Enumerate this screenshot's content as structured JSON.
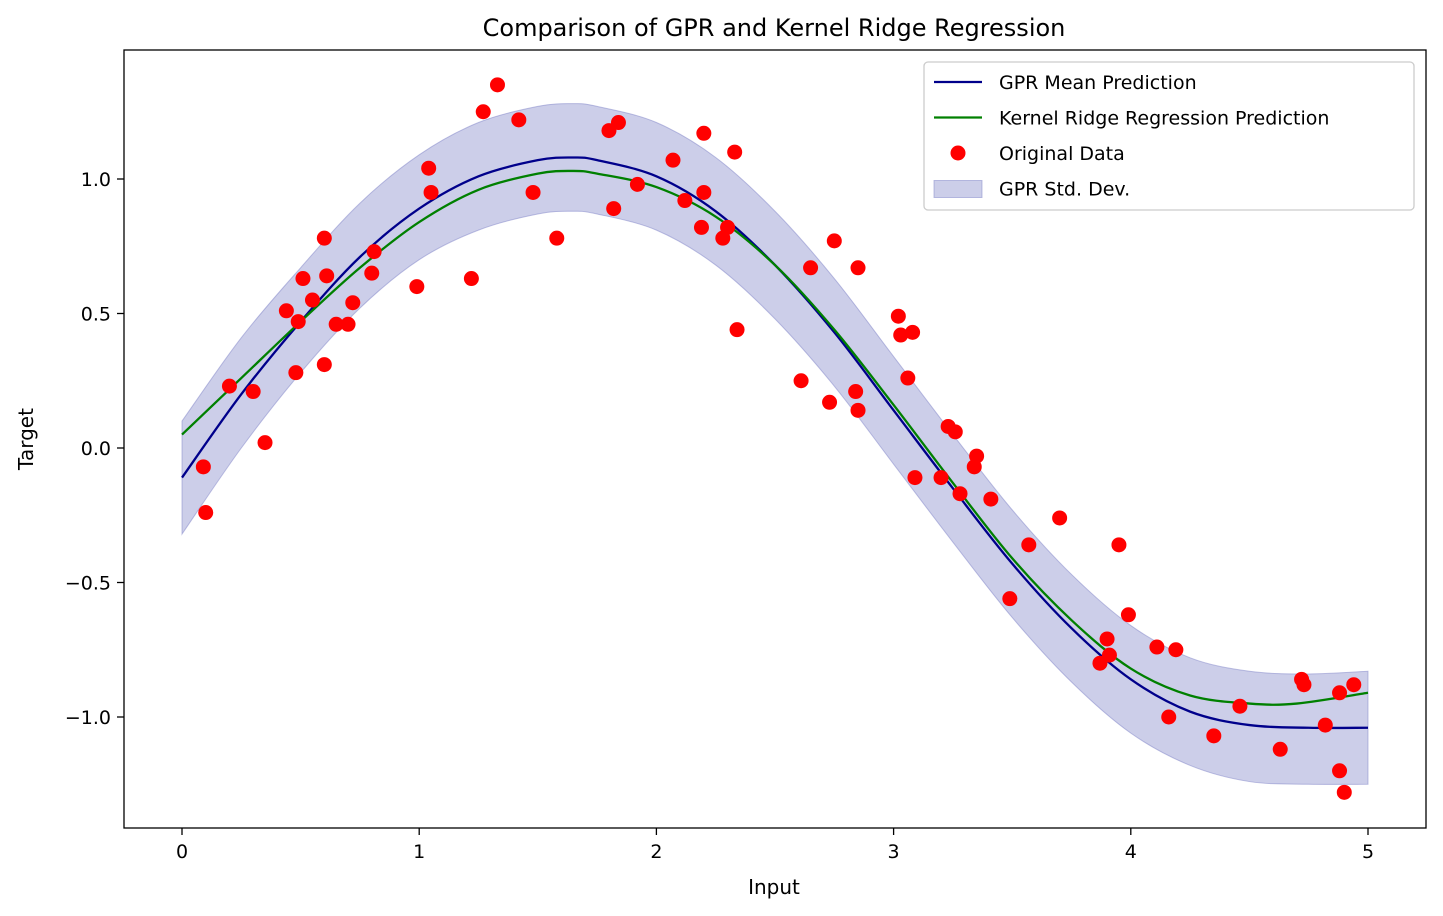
{
  "chart_data": {
    "type": "line",
    "title": "Comparison of GPR and Kernel Ridge Regression",
    "xlabel": "Input",
    "ylabel": "Target",
    "xlim": [
      -0.25,
      5.25
    ],
    "ylim": [
      -1.42,
      1.47
    ],
    "x_ticks": [
      0,
      1,
      2,
      3,
      4,
      5
    ],
    "x_tick_labels": [
      "0",
      "1",
      "2",
      "3",
      "4",
      "5"
    ],
    "y_ticks": [
      -1.0,
      -0.5,
      0.0,
      0.5,
      1.0
    ],
    "y_tick_labels": [
      "−1.0",
      "−0.5",
      "0.0",
      "0.5",
      "1.0"
    ],
    "grid": false,
    "legend_position": "top-right",
    "series": [
      {
        "name": "GPR Mean Prediction",
        "type": "line",
        "color": "#00008b",
        "x": [
          0,
          0.25,
          0.5,
          0.75,
          1.0,
          1.25,
          1.5,
          1.65,
          1.75,
          2.0,
          2.25,
          2.5,
          2.75,
          3.0,
          3.25,
          3.5,
          3.75,
          4.0,
          4.25,
          4.5,
          4.75,
          5.0
        ],
        "y": [
          -0.11,
          0.2,
          0.47,
          0.71,
          0.89,
          1.01,
          1.07,
          1.08,
          1.07,
          1.01,
          0.88,
          0.68,
          0.43,
          0.14,
          -0.15,
          -0.43,
          -0.67,
          -0.86,
          -0.98,
          -1.03,
          -1.04,
          -1.04
        ]
      },
      {
        "name": "Kernel Ridge Regression Prediction",
        "type": "line",
        "color": "#008000",
        "x": [
          0,
          0.25,
          0.5,
          0.75,
          1.0,
          1.25,
          1.5,
          1.65,
          1.75,
          2.0,
          2.25,
          2.5,
          2.75,
          3.0,
          3.25,
          3.5,
          3.75,
          4.0,
          4.25,
          4.5,
          4.7,
          5.0
        ],
        "y": [
          0.05,
          0.26,
          0.47,
          0.67,
          0.84,
          0.96,
          1.02,
          1.03,
          1.02,
          0.97,
          0.86,
          0.68,
          0.44,
          0.16,
          -0.13,
          -0.41,
          -0.64,
          -0.82,
          -0.92,
          -0.95,
          -0.95,
          -0.91
        ]
      },
      {
        "name": "GPR Std. Dev.",
        "type": "band",
        "color": "#8084c8",
        "x": [
          0,
          0.25,
          0.5,
          0.75,
          1.0,
          1.25,
          1.5,
          1.65,
          1.75,
          2.0,
          2.25,
          2.5,
          2.75,
          3.0,
          3.25,
          3.5,
          3.75,
          4.0,
          4.25,
          4.5,
          4.75,
          5.0
        ],
        "lower": [
          -0.32,
          0.0,
          0.28,
          0.52,
          0.7,
          0.81,
          0.87,
          0.88,
          0.87,
          0.81,
          0.68,
          0.48,
          0.23,
          -0.06,
          -0.35,
          -0.63,
          -0.87,
          -1.06,
          -1.18,
          -1.24,
          -1.25,
          -1.25
        ],
        "upper": [
          0.1,
          0.41,
          0.67,
          0.91,
          1.09,
          1.21,
          1.27,
          1.28,
          1.27,
          1.21,
          1.08,
          0.88,
          0.63,
          0.34,
          0.05,
          -0.23,
          -0.47,
          -0.66,
          -0.78,
          -0.83,
          -0.84,
          -0.83
        ]
      },
      {
        "name": "Original Data",
        "type": "scatter",
        "color": "#ff0000",
        "x": [
          0.09,
          0.1,
          0.2,
          0.3,
          0.35,
          0.44,
          0.48,
          0.49,
          0.51,
          0.55,
          0.6,
          0.6,
          0.61,
          0.65,
          0.7,
          0.72,
          0.8,
          0.81,
          0.99,
          1.04,
          1.05,
          1.22,
          1.27,
          1.33,
          1.42,
          1.48,
          1.58,
          1.8,
          1.82,
          1.84,
          1.92,
          2.07,
          2.12,
          2.19,
          2.2,
          2.2,
          2.28,
          2.3,
          2.33,
          2.34,
          2.61,
          2.65,
          2.73,
          2.75,
          2.84,
          2.85,
          2.85,
          3.02,
          3.03,
          3.06,
          3.08,
          3.09,
          3.2,
          3.23,
          3.26,
          3.28,
          3.34,
          3.35,
          3.41,
          3.49,
          3.57,
          3.7,
          3.87,
          3.9,
          3.91,
          3.95,
          3.99,
          4.11,
          4.16,
          4.19,
          4.35,
          4.46,
          4.63,
          4.72,
          4.73,
          4.82,
          4.88,
          4.88,
          4.9,
          4.94
        ],
        "y": [
          -0.07,
          -0.24,
          0.23,
          0.21,
          0.02,
          0.51,
          0.28,
          0.47,
          0.63,
          0.55,
          0.31,
          0.78,
          0.64,
          0.46,
          0.46,
          0.54,
          0.65,
          0.73,
          0.6,
          1.04,
          0.95,
          0.63,
          1.25,
          1.35,
          1.22,
          0.95,
          0.78,
          1.18,
          0.89,
          1.21,
          0.98,
          1.07,
          0.92,
          0.82,
          1.17,
          0.95,
          0.78,
          0.82,
          1.1,
          0.44,
          0.25,
          0.67,
          0.17,
          0.77,
          0.21,
          0.14,
          0.67,
          0.49,
          0.42,
          0.26,
          0.43,
          -0.11,
          -0.11,
          0.08,
          0.06,
          -0.17,
          -0.07,
          -0.03,
          -0.19,
          -0.56,
          -0.36,
          -0.26,
          -0.8,
          -0.71,
          -0.77,
          -0.36,
          -0.62,
          -0.74,
          -1.0,
          -0.75,
          -1.07,
          -0.96,
          -1.12,
          -0.86,
          -0.88,
          -1.03,
          -0.91,
          -1.2,
          -1.28,
          -0.88
        ]
      }
    ],
    "legend_order": [
      "GPR Mean Prediction",
      "Kernel Ridge Regression Prediction",
      "Original Data",
      "GPR Std. Dev."
    ]
  }
}
